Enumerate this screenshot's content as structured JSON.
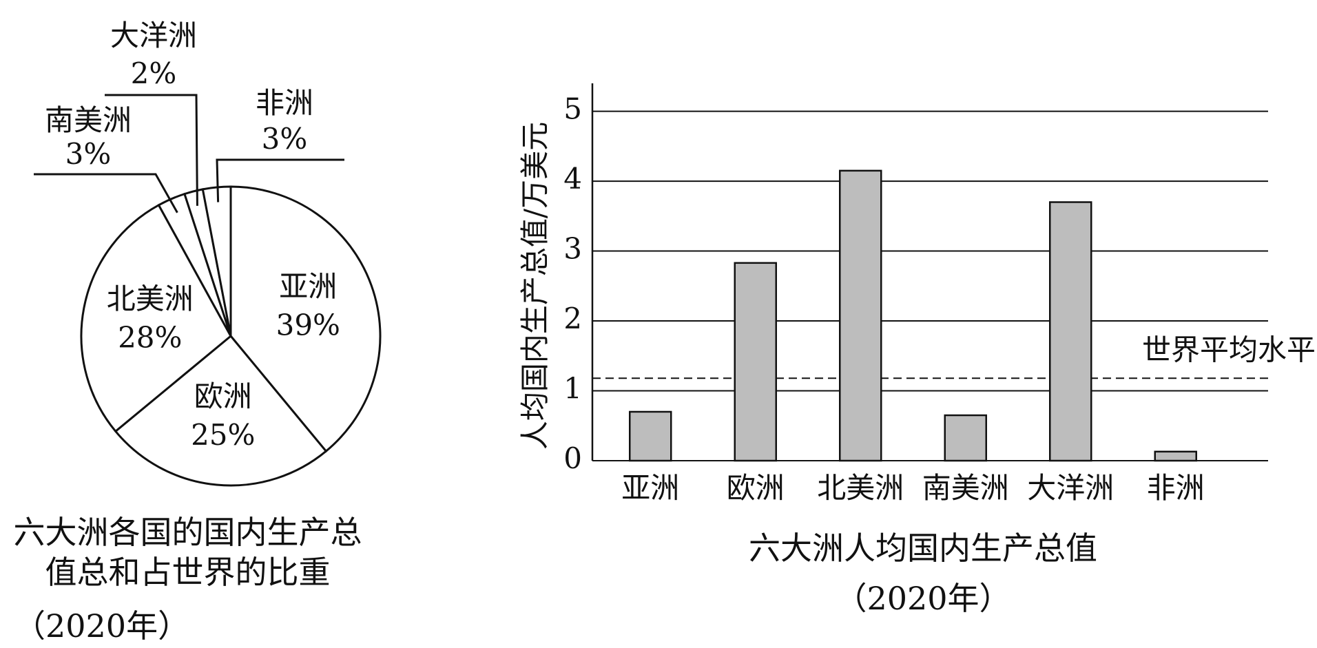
{
  "chart_data": [
    {
      "type": "pie",
      "title": "六大洲各国的国内生产总值总和占世界的比重",
      "subtitle": "（2020年）",
      "categories": [
        "亚洲",
        "欧洲",
        "北美洲",
        "南美洲",
        "大洋洲",
        "非洲"
      ],
      "values": [
        39,
        25,
        28,
        3,
        2,
        3
      ],
      "value_labels": [
        "39%",
        "25%",
        "28%",
        "3%",
        "2%",
        "3%"
      ],
      "color": "#ffffff"
    },
    {
      "type": "bar",
      "title": "六大洲人均国内生产总值",
      "subtitle": "（2020年）",
      "ylabel": "人均国内生产总值/万美元",
      "categories": [
        "亚洲",
        "欧洲",
        "北美洲",
        "南美洲",
        "大洋洲",
        "非洲"
      ],
      "values": [
        0.7,
        2.83,
        4.15,
        0.65,
        3.7,
        0.13
      ],
      "color": "#bdbdbd",
      "ylim": [
        0,
        5.4
      ],
      "yticks": [
        0,
        1,
        2,
        3,
        4,
        5
      ],
      "grid": true,
      "reference_line": {
        "value": 1.18,
        "label": "世界平均水平"
      }
    }
  ]
}
